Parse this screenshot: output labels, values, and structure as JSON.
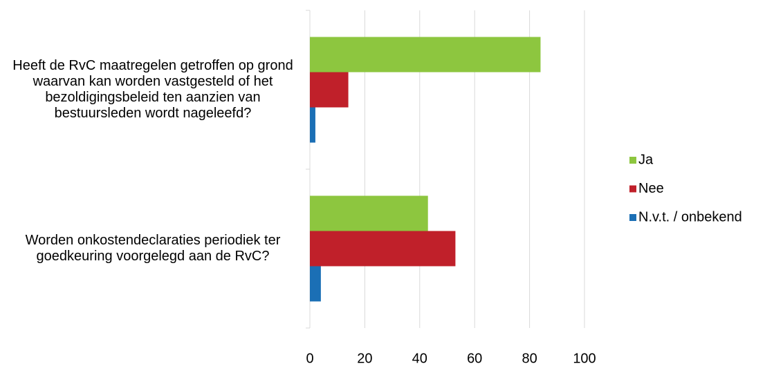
{
  "chart_data": {
    "type": "bar",
    "orientation": "horizontal",
    "categories": [
      "Heeft de RvC maatregelen getroffen op grond waarvan kan worden vastgesteld of het bezoldigingsbeleid ten aanzien van bestuursleden wordt nageleefd?",
      "Worden onkostendeclaraties periodiek ter goedkeuring voorgelegd aan de RvC?"
    ],
    "series": [
      {
        "name": "Ja",
        "color": "#8dc63f",
        "values": [
          84,
          43
        ]
      },
      {
        "name": "Nee",
        "color": "#c0202a",
        "values": [
          14,
          53
        ]
      },
      {
        "name": "N.v.t. / onbekend",
        "color": "#1b6fb5",
        "values": [
          2,
          4
        ]
      }
    ],
    "xlim": [
      0,
      100
    ],
    "xticks": [
      0,
      20,
      40,
      60,
      80,
      100
    ],
    "grid": true,
    "legend": "right"
  }
}
